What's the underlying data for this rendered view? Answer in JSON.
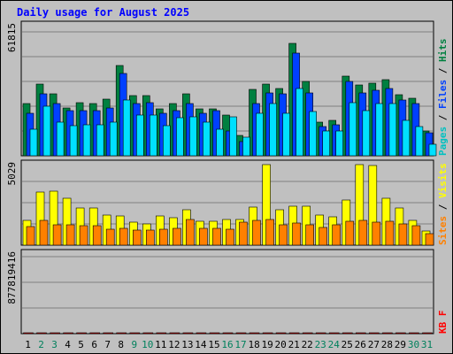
{
  "title": "Daily usage for August 2025",
  "colors": {
    "background": "#c0c0c0",
    "title": "#0000ff",
    "hits": "#008040",
    "files": "#0040ff",
    "pages": "#00e0ff",
    "visits": "#ffff00",
    "sites": "#ff8000",
    "kbytes": "#ff0000",
    "weekend_label": "#00805c",
    "weekday_label": "#000000"
  },
  "chart_data": [
    {
      "type": "bar",
      "label_text": "Pages / Files / Hits",
      "label_parts": [
        {
          "text": "Pages",
          "color": "#00c0c0"
        },
        {
          "text": " / ",
          "color": "#000000"
        },
        {
          "text": "Files",
          "color": "#0040ff"
        },
        {
          "text": " / ",
          "color": "#000000"
        },
        {
          "text": "Hits",
          "color": "#008040"
        }
      ],
      "ymax_label": "61815",
      "ymax": 61815,
      "categories": [
        "1",
        "2",
        "3",
        "4",
        "5",
        "6",
        "7",
        "8",
        "9",
        "10",
        "11",
        "12",
        "13",
        "14",
        "15",
        "16",
        "17",
        "18",
        "19",
        "20",
        "21",
        "22",
        "23",
        "24",
        "25",
        "26",
        "27",
        "28",
        "29",
        "30",
        "31"
      ],
      "series": [
        {
          "name": "Hits",
          "color": "#008040",
          "values": [
            24600,
            33900,
            29100,
            22700,
            25100,
            24600,
            26900,
            42800,
            28200,
            28600,
            22000,
            24600,
            29100,
            22000,
            22000,
            19300,
            9800,
            31400,
            33900,
            31800,
            53000,
            35100,
            16000,
            16800,
            37700,
            33500,
            34400,
            35900,
            28700,
            27000,
            11900
          ]
        },
        {
          "name": "Files",
          "color": "#0040ff",
          "values": [
            20100,
            29100,
            24600,
            21300,
            21500,
            21300,
            22700,
            39000,
            24600,
            25100,
            20100,
            21300,
            24600,
            20100,
            21300,
            11700,
            6700,
            24600,
            29500,
            29100,
            48300,
            29500,
            13900,
            14500,
            35100,
            29700,
            31100,
            31800,
            26300,
            24600,
            10800
          ]
        },
        {
          "name": "Pages",
          "color": "#00e0ff",
          "values": [
            12500,
            23300,
            15700,
            14300,
            14700,
            14700,
            15900,
            26300,
            19300,
            19100,
            14100,
            17900,
            18400,
            15900,
            12500,
            18400,
            8800,
            20100,
            24600,
            20100,
            31600,
            20800,
            11500,
            11700,
            25100,
            21300,
            24600,
            24600,
            16600,
            13900,
            5600
          ]
        }
      ]
    },
    {
      "type": "bar",
      "label_text": "Sites / Visits",
      "label_parts": [
        {
          "text": "Sites",
          "color": "#ff8000"
        },
        {
          "text": " / ",
          "color": "#000000"
        },
        {
          "text": "Visits",
          "color": "#ffff00"
        }
      ],
      "ymax_label": "5029",
      "ymax": 5029,
      "categories": [
        "1",
        "2",
        "3",
        "4",
        "5",
        "6",
        "7",
        "8",
        "9",
        "10",
        "11",
        "12",
        "13",
        "14",
        "15",
        "16",
        "17",
        "18",
        "19",
        "20",
        "21",
        "22",
        "23",
        "24",
        "25",
        "26",
        "27",
        "28",
        "29",
        "30",
        "31"
      ],
      "series": [
        {
          "name": "Visits",
          "color": "#ffff00",
          "values": [
            1530,
            3280,
            3350,
            2900,
            2320,
            2300,
            1860,
            1830,
            1440,
            1300,
            1810,
            1720,
            2180,
            1480,
            1480,
            1560,
            1590,
            2370,
            5000,
            2160,
            2430,
            2400,
            1870,
            1750,
            2800,
            5000,
            4900,
            2870,
            2280,
            1550,
            870
          ]
        },
        {
          "name": "Sites",
          "color": "#ff8000",
          "values": [
            1170,
            1540,
            1240,
            1240,
            1220,
            1220,
            1000,
            1020,
            940,
            950,
            1010,
            1050,
            1600,
            1030,
            1020,
            1010,
            1430,
            1530,
            1560,
            1240,
            1390,
            1280,
            1120,
            1270,
            1460,
            1520,
            1420,
            1460,
            1300,
            1220,
            720
          ]
        }
      ]
    },
    {
      "type": "bar",
      "label_text": "KB F",
      "label_parts": [
        {
          "text": "KB F",
          "color": "#ff0000"
        }
      ],
      "ymax_label": "877819416",
      "ymax": 877819416,
      "categories": [
        "1",
        "2",
        "3",
        "4",
        "5",
        "6",
        "7",
        "8",
        "9",
        "10",
        "11",
        "12",
        "13",
        "14",
        "15",
        "16",
        "17",
        "18",
        "19",
        "20",
        "21",
        "22",
        "23",
        "24",
        "25",
        "26",
        "27",
        "28",
        "29",
        "30",
        "31"
      ],
      "series": [
        {
          "name": "KB F",
          "color": "#ff0000",
          "values": [
            717000,
            732000,
            735000,
            686000,
            747000,
            723000,
            723000,
            729000,
            729000,
            711000,
            823000,
            836000,
            820000,
            832000,
            827000,
            827000,
            820000,
            836000,
            827000,
            820000,
            832000,
            827000,
            827000,
            832000,
            832000,
            832000,
            836000,
            888000,
            832000,
            820000,
            362000
          ]
        }
      ]
    }
  ],
  "x_labels": [
    {
      "text": "1",
      "weekend": false
    },
    {
      "text": "2",
      "weekend": true
    },
    {
      "text": "3",
      "weekend": true
    },
    {
      "text": "4",
      "weekend": false
    },
    {
      "text": "5",
      "weekend": false
    },
    {
      "text": "6",
      "weekend": false
    },
    {
      "text": "7",
      "weekend": false
    },
    {
      "text": "8",
      "weekend": false
    },
    {
      "text": "9",
      "weekend": true
    },
    {
      "text": "10",
      "weekend": true
    },
    {
      "text": "11",
      "weekend": false
    },
    {
      "text": "12",
      "weekend": false
    },
    {
      "text": "13",
      "weekend": false
    },
    {
      "text": "14",
      "weekend": false
    },
    {
      "text": "15",
      "weekend": false
    },
    {
      "text": "16",
      "weekend": true
    },
    {
      "text": "17",
      "weekend": true
    },
    {
      "text": "18",
      "weekend": false
    },
    {
      "text": "19",
      "weekend": false
    },
    {
      "text": "20",
      "weekend": false
    },
    {
      "text": "21",
      "weekend": false
    },
    {
      "text": "22",
      "weekend": false
    },
    {
      "text": "23",
      "weekend": true
    },
    {
      "text": "24",
      "weekend": true
    },
    {
      "text": "25",
      "weekend": false
    },
    {
      "text": "26",
      "weekend": false
    },
    {
      "text": "27",
      "weekend": false
    },
    {
      "text": "28",
      "weekend": false
    },
    {
      "text": "29",
      "weekend": false
    },
    {
      "text": "30",
      "weekend": true
    },
    {
      "text": "31",
      "weekend": true
    }
  ]
}
